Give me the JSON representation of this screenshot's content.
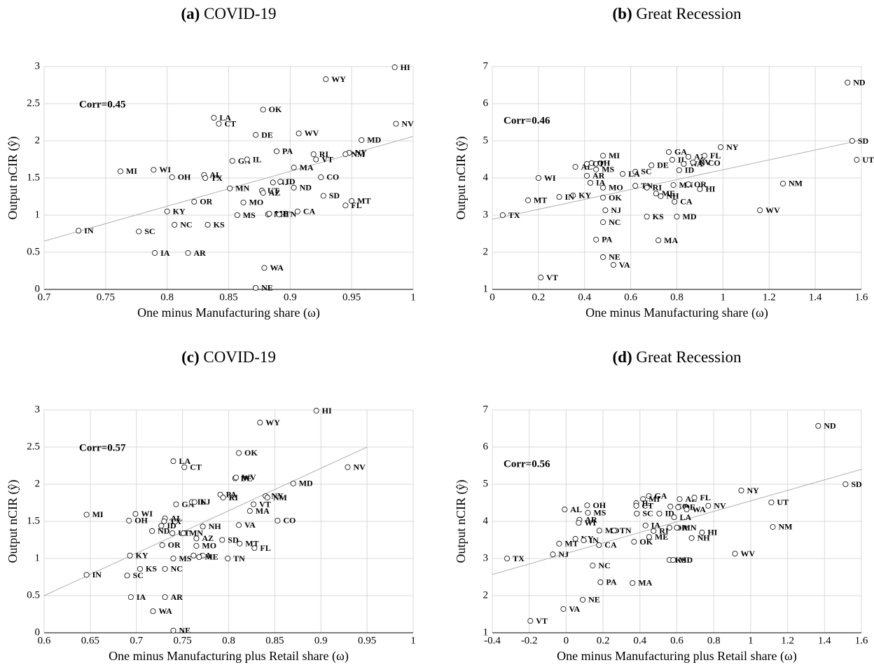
{
  "chart_data": [
    {
      "type": "scatter",
      "label": "(a)",
      "title": "COVID-19",
      "xlabel": "One minus Manufacturing share (ω)",
      "ylabel": "Output nCIR (ŷ)",
      "annotation": "Corr=0.45",
      "xlim": [
        0.7,
        1
      ],
      "xticks": [
        0.7,
        0.75,
        0.8,
        0.85,
        0.9,
        0.95,
        1
      ],
      "ylim": [
        0,
        3
      ],
      "yticks": [
        0,
        0.5,
        1,
        1.5,
        2,
        2.5,
        3
      ],
      "grid": true,
      "trend": {
        "x": [
          0.7,
          1
        ],
        "y": [
          0.65,
          2.06
        ]
      },
      "labels": [
        "HI",
        "WY",
        "OK",
        "LA",
        "CT",
        "NV",
        "DE",
        "WV",
        "MD",
        "PA",
        "RI",
        "NY",
        "NM",
        "GA",
        "IL",
        "VT",
        "MA",
        "MI",
        "WI",
        "OH",
        "AL",
        "TX",
        "CO",
        "MN",
        "UT",
        "AZ",
        "NJ",
        "ID",
        "ND",
        "SD",
        "MO",
        "OR",
        "MT",
        "FL",
        "KY",
        "MS",
        "NH",
        "ME",
        "TN",
        "CA",
        "NC",
        "KS",
        "IN",
        "SC",
        "IA",
        "AR",
        "WA",
        "NE"
      ],
      "x": [
        0.985,
        0.929,
        0.878,
        0.838,
        0.842,
        0.986,
        0.872,
        0.907,
        0.958,
        0.889,
        0.919,
        0.948,
        0.945,
        0.853,
        0.865,
        0.921,
        0.903,
        0.762,
        0.789,
        0.804,
        0.83,
        0.831,
        0.925,
        0.851,
        0.877,
        0.878,
        0.886,
        0.892,
        0.903,
        0.927,
        0.862,
        0.822,
        0.95,
        0.945,
        0.8,
        0.857,
        0.882,
        0.883,
        0.891,
        0.906,
        0.806,
        0.833,
        0.728,
        0.777,
        0.79,
        0.817,
        0.879,
        0.872
      ],
      "y": [
        2.99,
        2.83,
        2.42,
        2.31,
        2.23,
        2.23,
        2.08,
        2.1,
        2.01,
        1.86,
        1.82,
        1.84,
        1.82,
        1.73,
        1.75,
        1.75,
        1.64,
        1.59,
        1.61,
        1.51,
        1.54,
        1.5,
        1.51,
        1.36,
        1.33,
        1.3,
        1.44,
        1.45,
        1.37,
        1.26,
        1.17,
        1.18,
        1.19,
        1.13,
        1.05,
        1,
        1.01,
        1.02,
        1.01,
        1.05,
        0.87,
        0.87,
        0.79,
        0.78,
        0.49,
        0.49,
        0.29,
        0.02
      ]
    },
    {
      "type": "scatter",
      "label": "(b)",
      "title": "Great Recession",
      "xlabel": "One minus Manufacturing share (ω)",
      "ylabel": "Output nCIR (ŷ)",
      "annotation": "Corr=0.46",
      "xlim": [
        0,
        1.6
      ],
      "xticks": [
        0,
        0.2,
        0.4,
        0.6,
        0.8,
        1,
        1.2,
        1.4,
        1.6
      ],
      "ylim": [
        1,
        7
      ],
      "yticks": [
        1,
        2,
        3,
        4,
        5,
        6,
        7
      ],
      "grid": true,
      "trend": {
        "x": [
          0,
          1.6
        ],
        "y": [
          2.89,
          5.02
        ]
      },
      "labels": [
        "ND",
        "SD",
        "UT",
        "NM",
        "WV",
        "NY",
        "HI",
        "MD",
        "GA",
        "AZ",
        "FL",
        "IL",
        "CO",
        "WA",
        "DE",
        "NV",
        "ID",
        "SC",
        "LA",
        "MI",
        "OH",
        "AL",
        "CT",
        "MS",
        "AR",
        "WI",
        "IA",
        "MO",
        "TN",
        "RI",
        "MN",
        "OR",
        "ME",
        "NH",
        "OK",
        "KY",
        "IN",
        "MT",
        "TX",
        "KS",
        "NJ",
        "NC",
        "CA",
        "PA",
        "MA",
        "NE",
        "VA",
        "VT"
      ],
      "x": [
        1.54,
        1.56,
        1.58,
        1.26,
        1.16,
        0.99,
        0.9,
        0.8,
        0.765,
        0.85,
        0.92,
        0.78,
        0.91,
        0.83,
        0.69,
        0.87,
        0.81,
        0.62,
        0.565,
        0.48,
        0.43,
        0.36,
        0.41,
        0.45,
        0.41,
        0.2,
        0.425,
        0.48,
        0.62,
        0.67,
        0.785,
        0.85,
        0.71,
        0.73,
        0.48,
        0.35,
        0.29,
        0.155,
        0.045,
        0.67,
        0.49,
        0.48,
        0.79,
        0.45,
        0.72,
        0.48,
        0.525,
        0.21
      ],
      "y": [
        6.57,
        5,
        4.49,
        3.85,
        3.13,
        4.83,
        3.7,
        2.96,
        4.7,
        4.57,
        4.6,
        4.49,
        4.4,
        4.38,
        4.34,
        4.42,
        4.21,
        4.17,
        4.11,
        4.6,
        4.4,
        4.3,
        4.38,
        4.23,
        4.06,
        4,
        3.87,
        3.74,
        3.79,
        3.74,
        3.81,
        3.83,
        3.58,
        3.51,
        3.47,
        3.53,
        3.49,
        3.4,
        3,
        2.96,
        3.13,
        2.81,
        3.36,
        2.34,
        2.32,
        1.87,
        1.66,
        1.32
      ]
    },
    {
      "type": "scatter",
      "label": "(c)",
      "title": "COVID-19",
      "xlabel": "One minus Manufacturing plus Retail share (ω)",
      "ylabel": "Output nCIR (ŷ)",
      "annotation": "Corr=0.57",
      "xlim": [
        0.6,
        1
      ],
      "xticks": [
        0.6,
        0.65,
        0.7,
        0.75,
        0.8,
        0.85,
        0.9,
        0.95,
        1
      ],
      "ylim": [
        0,
        3
      ],
      "yticks": [
        0,
        0.5,
        1,
        1.5,
        2,
        2.5,
        3
      ],
      "grid": true,
      "trend": {
        "x": [
          0.6,
          0.95
        ],
        "y": [
          0.5,
          2.5
        ]
      },
      "labels": [
        "HI",
        "WY",
        "OK",
        "LA",
        "CT",
        "NV",
        "DE",
        "WV",
        "MD",
        "PA",
        "RI",
        "NY",
        "NM",
        "GA",
        "IL",
        "NJ",
        "VT",
        "MA",
        "MI",
        "WI",
        "OH",
        "AL",
        "TX",
        "ID",
        "ND",
        "CO",
        "VA",
        "NH",
        "UT",
        "MN",
        "AZ",
        "SD",
        "OR",
        "MO",
        "MT",
        "FL",
        "KY",
        "MS",
        "CA",
        "ME",
        "TN",
        "KS",
        "NC",
        "IN",
        "SC",
        "IA",
        "AR",
        "WA",
        "NE"
      ],
      "x": [
        0.895,
        0.834,
        0.811,
        0.74,
        0.752,
        0.929,
        0.807,
        0.808,
        0.87,
        0.791,
        0.794,
        0.84,
        0.842,
        0.743,
        0.76,
        0.763,
        0.827,
        0.823,
        0.646,
        0.699,
        0.692,
        0.731,
        0.73,
        0.727,
        0.717,
        0.853,
        0.811,
        0.772,
        0.739,
        0.751,
        0.765,
        0.793,
        0.728,
        0.765,
        0.812,
        0.828,
        0.693,
        0.74,
        0.762,
        0.768,
        0.799,
        0.704,
        0.731,
        0.646,
        0.69,
        0.694,
        0.731,
        0.718,
        0.74
      ],
      "y": [
        2.99,
        2.83,
        2.42,
        2.31,
        2.23,
        2.23,
        2.08,
        2.09,
        2.01,
        1.86,
        1.82,
        1.84,
        1.82,
        1.73,
        1.76,
        1.76,
        1.73,
        1.64,
        1.59,
        1.6,
        1.51,
        1.54,
        1.5,
        1.44,
        1.37,
        1.51,
        1.45,
        1.43,
        1.34,
        1.34,
        1.27,
        1.25,
        1.18,
        1.17,
        1.2,
        1.14,
        1.04,
        1,
        1.04,
        1.02,
        1,
        0.86,
        0.86,
        0.78,
        0.77,
        0.48,
        0.48,
        0.29,
        0.03
      ]
    },
    {
      "type": "scatter",
      "label": "(d)",
      "title": "Great Recession",
      "xlabel": "One minus Manufacturing plus Retail share (ω)",
      "ylabel": "Output nCIR (ŷ)",
      "annotation": "Corr=0.56",
      "xlim": [
        -0.4,
        1.6
      ],
      "xticks": [
        -0.4,
        -0.2,
        0,
        0.2,
        0.4,
        0.6,
        0.8,
        1,
        1.2,
        1.4,
        1.6
      ],
      "ylim": [
        1,
        7
      ],
      "yticks": [
        1,
        2,
        3,
        4,
        5,
        6,
        7
      ],
      "grid": true,
      "trend": {
        "x": [
          -0.4,
          1.6
        ],
        "y": [
          2.57,
          5.4
        ]
      },
      "labels": [
        "ND",
        "SD",
        "UT",
        "NY",
        "NM",
        "WV",
        "HI",
        "NH",
        "GA",
        "MI",
        "AZ",
        "FL",
        "CO",
        "DE",
        "WA",
        "NV",
        "IL",
        "CT",
        "SC",
        "ID",
        "LA",
        "OH",
        "AL",
        "MS",
        "AR",
        "WI",
        "IA",
        "OR",
        "MN",
        "RI",
        "ME",
        "MO",
        "TN",
        "KY",
        "IN",
        "OK",
        "MT",
        "CA",
        "TX",
        "NJ",
        "KS",
        "MD",
        "NC",
        "PA",
        "MA",
        "NE",
        "VA",
        "VT"
      ],
      "x": [
        1.366,
        1.514,
        1.112,
        0.949,
        1.12,
        0.915,
        0.736,
        0.68,
        0.448,
        0.417,
        0.615,
        0.695,
        0.565,
        0.607,
        0.653,
        0.77,
        0.38,
        0.38,
        0.383,
        0.505,
        0.585,
        0.114,
        -0.008,
        0.118,
        0.072,
        0.068,
        0.43,
        0.56,
        0.6,
        0.474,
        0.45,
        0.18,
        0.26,
        0.05,
        0.095,
        0.368,
        -0.038,
        0.178,
        -0.32,
        -0.072,
        0.56,
        0.58,
        0.144,
        0.186,
        0.36,
        0.09,
        -0.015,
        -0.194
      ],
      "y": [
        6.57,
        5,
        4.51,
        4.83,
        3.85,
        3.13,
        3.7,
        3.55,
        4.68,
        4.6,
        4.6,
        4.64,
        4.4,
        4.38,
        4.32,
        4.42,
        4.49,
        4.42,
        4.21,
        4.21,
        4.11,
        4.43,
        4.32,
        4.23,
        4.04,
        3.96,
        3.89,
        3.83,
        3.83,
        3.74,
        3.58,
        3.75,
        3.75,
        3.53,
        3.49,
        3.45,
        3.4,
        3.36,
        3,
        3.11,
        2.96,
        2.96,
        2.81,
        2.36,
        2.34,
        1.89,
        1.64,
        1.32
      ]
    }
  ]
}
